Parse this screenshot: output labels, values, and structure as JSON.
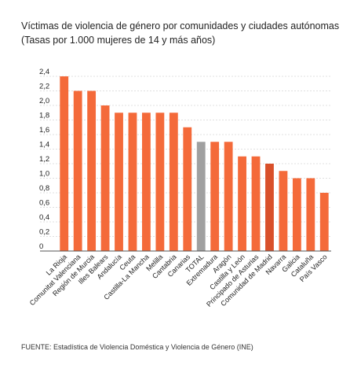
{
  "chart_data": {
    "type": "bar",
    "title": "Víctimas de violencia de género por comunidades y ciudades autónomas",
    "subtitle": "(Tasas por 1.000 mujeres de 14 y más años)",
    "xlabel": "",
    "ylabel": "",
    "ylim": [
      0,
      2.4
    ],
    "yticks": [
      "0",
      "0,2",
      "0,4",
      "0,6",
      "0,8",
      "1,0",
      "1,2",
      "1,4",
      "1,6",
      "1,8",
      "2,0",
      "2,2",
      "2,4"
    ],
    "grid": true,
    "categories": [
      "La Rioja",
      "Comunitat Valenciana",
      "Región de Murcia",
      "Illes Balears",
      "Andalucía",
      "Ceuta",
      "Castilla-La Mancha",
      "Melilla",
      "Cantabria",
      "Canarias",
      "TOTAL",
      "Extremadura",
      "Aragón",
      "Castilla y León",
      "Principado de Asturias",
      "Comunidad de Madrid",
      "Navarra",
      "Galicia",
      "Cataluña",
      "País Vasco"
    ],
    "values": [
      2.4,
      2.2,
      2.2,
      2.0,
      1.9,
      1.9,
      1.9,
      1.9,
      1.9,
      1.7,
      1.5,
      1.5,
      1.5,
      1.3,
      1.3,
      1.2,
      1.1,
      1.0,
      1.0,
      0.8
    ],
    "colors": [
      "#f46a3a",
      "#f46a3a",
      "#f46a3a",
      "#f46a3a",
      "#f46a3a",
      "#f46a3a",
      "#f46a3a",
      "#f46a3a",
      "#f46a3a",
      "#f46a3a",
      "#a0a0a0",
      "#f46a3a",
      "#f46a3a",
      "#f46a3a",
      "#f46a3a",
      "#d9502a",
      "#f46a3a",
      "#f46a3a",
      "#f46a3a",
      "#f46a3a"
    ]
  },
  "footer": {
    "source": "FUENTE: Estadística de Violencia Doméstica y Violencia de Género (INE)"
  }
}
